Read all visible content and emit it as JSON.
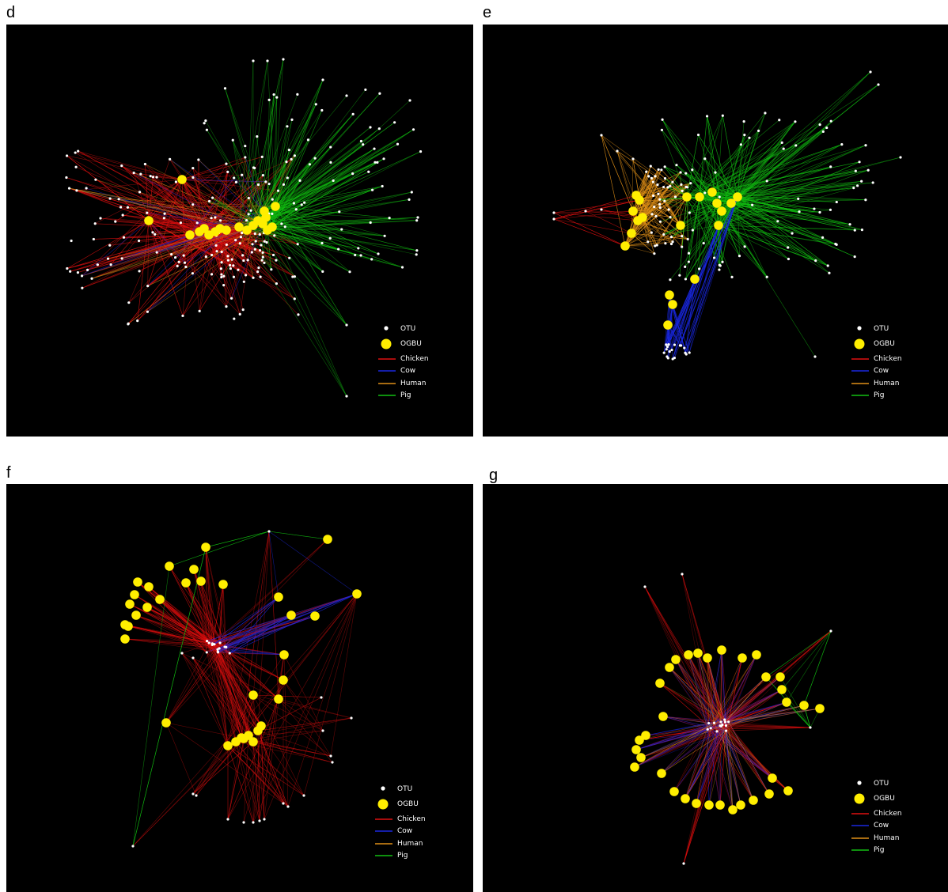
{
  "panels": [
    {
      "letter": "d",
      "legend": {
        "otu": "OTU",
        "ogbu": "OGBU",
        "chicken": "Chicken",
        "cow": "Cow",
        "human": "Human",
        "pig": "Pig"
      }
    },
    {
      "letter": "e",
      "legend": {
        "otu": "OTU",
        "ogbu": "OGBU",
        "chicken": "Chicken",
        "cow": "Cow",
        "human": "Human",
        "pig": "Pig"
      }
    },
    {
      "letter": "f",
      "legend": {
        "otu": "OTU",
        "ogbu": "OGBU",
        "chicken": "Chicken",
        "cow": "Cow",
        "human": "Human",
        "pig": "Pig"
      }
    },
    {
      "letter": "g",
      "legend": {
        "otu": "OTU",
        "ogbu": "OGBU",
        "chicken": "Chicken",
        "cow": "Cow",
        "human": "Human",
        "pig": "Pig"
      }
    }
  ],
  "colors": {
    "background": "#000000",
    "otu": "#ffffff",
    "ogbu": "#ffee00",
    "chicken": "#e01010",
    "cow": "#1a28e0",
    "human": "#e09018",
    "pig": "#12c012"
  }
}
